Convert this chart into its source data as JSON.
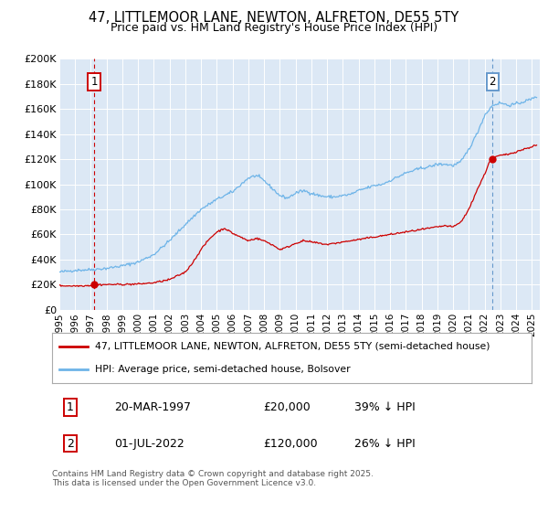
{
  "title_line1": "47, LITTLEMOOR LANE, NEWTON, ALFRETON, DE55 5TY",
  "title_line2": "Price paid vs. HM Land Registry's House Price Index (HPI)",
  "xlim_start": 1995.0,
  "xlim_end": 2025.5,
  "ylim_min": 0,
  "ylim_max": 200000,
  "yticks": [
    0,
    20000,
    40000,
    60000,
    80000,
    100000,
    120000,
    140000,
    160000,
    180000,
    200000
  ],
  "ytick_labels": [
    "£0",
    "£20K",
    "£40K",
    "£60K",
    "£80K",
    "£100K",
    "£120K",
    "£140K",
    "£160K",
    "£180K",
    "£200K"
  ],
  "xticks": [
    1995,
    1996,
    1997,
    1998,
    1999,
    2000,
    2001,
    2002,
    2003,
    2004,
    2005,
    2006,
    2007,
    2008,
    2009,
    2010,
    2011,
    2012,
    2013,
    2014,
    2015,
    2016,
    2017,
    2018,
    2019,
    2020,
    2021,
    2022,
    2023,
    2024,
    2025
  ],
  "hpi_color": "#6eb4e8",
  "property_color": "#cc0000",
  "background_color": "#dce8f5",
  "grid_color": "#ffffff",
  "purchase1_date": 1997.22,
  "purchase1_price": 20000,
  "purchase1_label": "1",
  "purchase1_vline_color": "#cc0000",
  "purchase2_date": 2022.5,
  "purchase2_price": 120000,
  "purchase2_label": "2",
  "purchase2_vline_color": "#6699cc",
  "legend_line1": "47, LITTLEMOOR LANE, NEWTON, ALFRETON, DE55 5TY (semi-detached house)",
  "legend_line2": "HPI: Average price, semi-detached house, Bolsover",
  "annot1_label": "1",
  "annot1_date": "20-MAR-1997",
  "annot1_price": "£20,000",
  "annot1_pct": "39% ↓ HPI",
  "annot2_label": "2",
  "annot2_date": "01-JUL-2022",
  "annot2_price": "£120,000",
  "annot2_pct": "26% ↓ HPI",
  "footer": "Contains HM Land Registry data © Crown copyright and database right 2025.\nThis data is licensed under the Open Government Licence v3.0."
}
